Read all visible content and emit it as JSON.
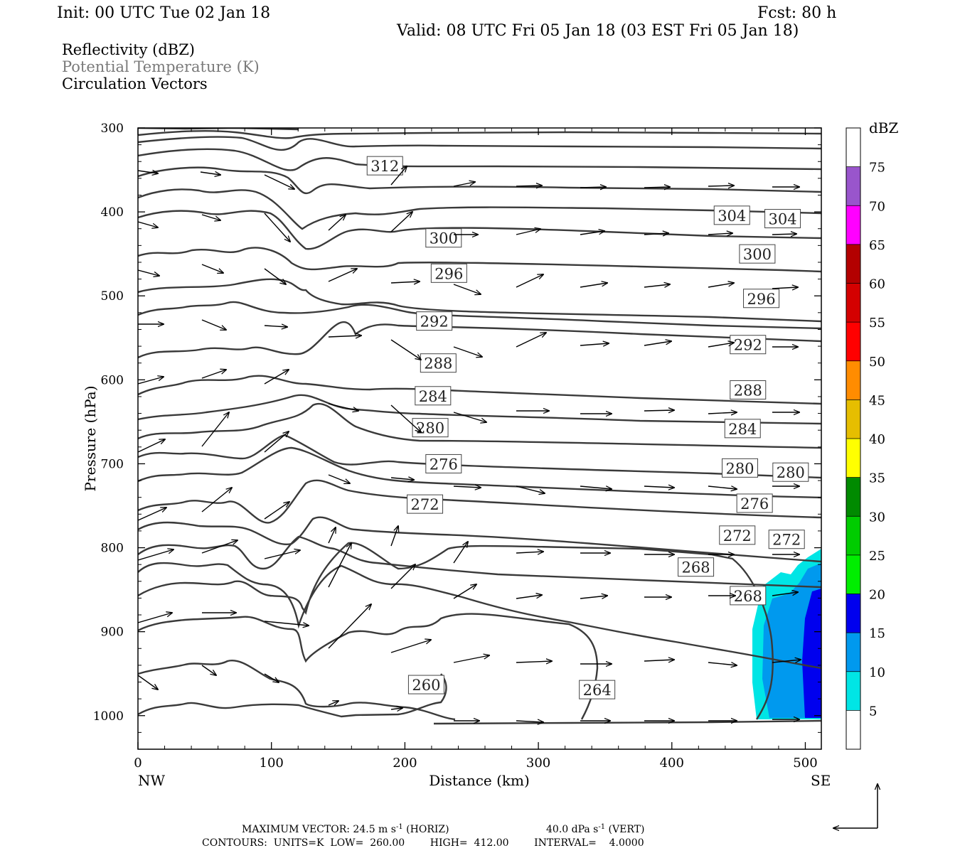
{
  "header": {
    "init": "Init: 00 UTC Tue 02 Jan 18",
    "fcst": "Fcst:   80 h",
    "valid": "Valid: 08 UTC Fri 05 Jan 18 (03 EST Fri 05 Jan 18)"
  },
  "fields": [
    "Reflectivity (dBZ)",
    "Potential Temperature (K)",
    "Circulation Vectors"
  ],
  "footer": {
    "vec_prefix": "MAXIMUM VECTOR:  24.5 m s",
    "vec_horiz": " (HORIZ)",
    "vec_vert_val": "40.0 dPa s",
    "vec_vert": " (VERT)",
    "exp": "-1",
    "contours": "CONTOURS:  UNITS=K  LOW=  260.00        HIGH=  412.00        INTERVAL=    4.0000"
  },
  "chart_data": {
    "type": "cross-section",
    "xlabel": "Distance (km)",
    "ylabel": "Pressure (hPa)",
    "xlim": [
      0,
      512
    ],
    "ylim": [
      1040,
      300
    ],
    "x_ticks": [
      "0",
      "100",
      "200",
      "300",
      "400",
      "500"
    ],
    "y_ticks": [
      "300",
      "400",
      "500",
      "600",
      "700",
      "800",
      "900",
      "1000"
    ],
    "x_end_labels": {
      "left": "NW",
      "right": "SE"
    },
    "colorbar": {
      "title": "dBZ",
      "levels": [
        "5",
        "10",
        "15",
        "20",
        "25",
        "30",
        "35",
        "40",
        "45",
        "50",
        "55",
        "60",
        "65",
        "70",
        "75"
      ],
      "colors": [
        "#ffffff",
        "#00e5e5",
        "#0099ee",
        "#0000ee",
        "#00ee00",
        "#00cc00",
        "#008a00",
        "#ffff00",
        "#e6be00",
        "#ff8c00",
        "#ff0000",
        "#d40000",
        "#b30000",
        "#ff00ff",
        "#9955cc",
        "#ffffff"
      ]
    },
    "theta_levels": [
      260,
      264,
      268,
      272,
      276,
      280,
      284,
      288,
      292,
      296,
      300,
      304,
      312
    ],
    "theta_labels": [
      {
        "text": "312",
        "x": 185,
        "p": 345
      },
      {
        "text": "304",
        "x": 445,
        "p": 404
      },
      {
        "text": "304",
        "x": 483,
        "p": 408
      },
      {
        "text": "300",
        "x": 229,
        "p": 431
      },
      {
        "text": "300",
        "x": 464,
        "p": 450
      },
      {
        "text": "296",
        "x": 233,
        "p": 473
      },
      {
        "text": "296",
        "x": 467,
        "p": 503
      },
      {
        "text": "292",
        "x": 222,
        "p": 530
      },
      {
        "text": "292",
        "x": 457,
        "p": 558
      },
      {
        "text": "288",
        "x": 225,
        "p": 580
      },
      {
        "text": "288",
        "x": 457,
        "p": 612
      },
      {
        "text": "284",
        "x": 221,
        "p": 619
      },
      {
        "text": "284",
        "x": 453,
        "p": 658
      },
      {
        "text": "280",
        "x": 219,
        "p": 657
      },
      {
        "text": "280",
        "x": 451,
        "p": 705
      },
      {
        "text": "280",
        "x": 489,
        "p": 710
      },
      {
        "text": "276",
        "x": 229,
        "p": 700
      },
      {
        "text": "276",
        "x": 462,
        "p": 747
      },
      {
        "text": "272",
        "x": 215,
        "p": 748
      },
      {
        "text": "272",
        "x": 449,
        "p": 785
      },
      {
        "text": "272",
        "x": 486,
        "p": 790
      },
      {
        "text": "268",
        "x": 418,
        "p": 823
      },
      {
        "text": "268",
        "x": 457,
        "p": 857
      },
      {
        "text": "260",
        "x": 216,
        "p": 963
      },
      {
        "text": "264",
        "x": 344,
        "p": 969
      }
    ]
  }
}
